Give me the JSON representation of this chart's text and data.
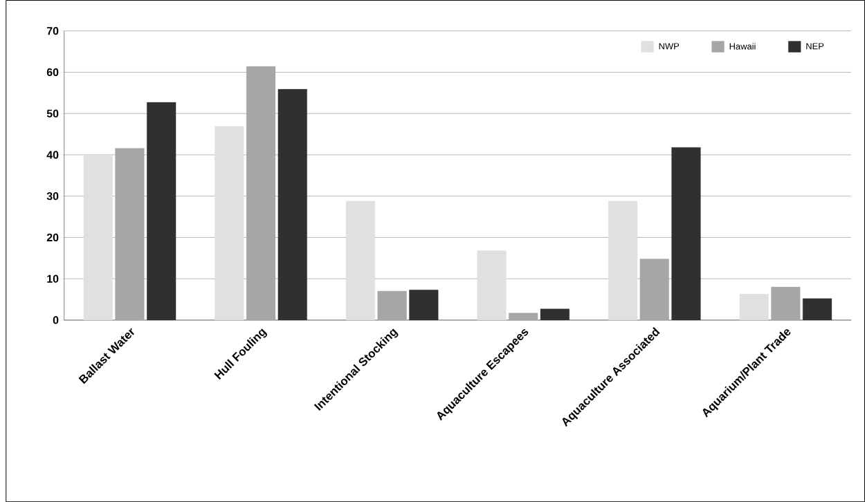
{
  "chart_data": {
    "type": "bar",
    "categories": [
      "Ballast Water",
      "Hull Fouling",
      "Intentional Stocking",
      "Aquaculture Escapees",
      "Aquaculture Associated",
      "Aquarium/Plant Trade"
    ],
    "series": [
      {
        "name": "NWP",
        "color": "#e0e0e0",
        "values": [
          39.8,
          46.9,
          28.8,
          16.8,
          28.8,
          6.3
        ]
      },
      {
        "name": "Hawaii",
        "color": "#a6a6a6",
        "values": [
          41.6,
          61.4,
          7.0,
          1.7,
          14.8,
          8.0
        ]
      },
      {
        "name": "NEP",
        "color": "#303030",
        "values": [
          52.7,
          55.9,
          7.3,
          2.7,
          41.8,
          5.2
        ]
      }
    ],
    "ylim": [
      0,
      70
    ],
    "yticks": [
      0,
      10,
      20,
      30,
      40,
      50,
      60,
      70
    ],
    "grid": "y",
    "legend": "top right"
  }
}
